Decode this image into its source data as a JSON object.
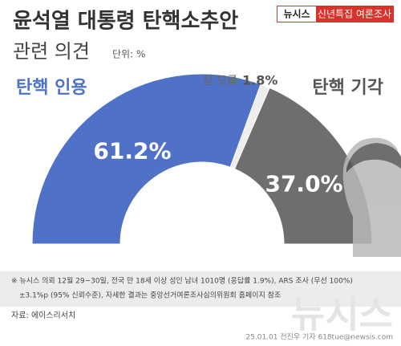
{
  "badge": {
    "brand": "뉴시스",
    "label": "신년특집 여론조사"
  },
  "chart_data": {
    "type": "half-donut",
    "title": "윤석열 대통령 탄핵소추안",
    "subtitle": "관련 의견",
    "unit": "단위: %",
    "categories": [
      "탄핵 인용",
      "잘 모름",
      "탄핵 기각"
    ],
    "values": [
      61.2,
      1.8,
      37.0
    ],
    "value_labels": [
      "61.2%",
      "1.8%",
      "37.0%"
    ],
    "colors": [
      "#4f72c8",
      "#eeeeee",
      "#6e6e6e"
    ]
  },
  "footnote": [
    "※ 뉴시스 의뢰 12월 29~30일, 전국 만 18세 이상 성인 남녀 1010명 (응답률 1.9%), ARS 조사 (무선 100%)",
    "±3.1%p (95% 신뢰수준), 자세한 결과는 중앙선거여론조사심의위원회 홈페이지 참조"
  ],
  "source": "자료: 에이스리서치",
  "watermark": "뉴시스",
  "credit": "25.01.01 전진우 기자 618tue@newsis.com"
}
